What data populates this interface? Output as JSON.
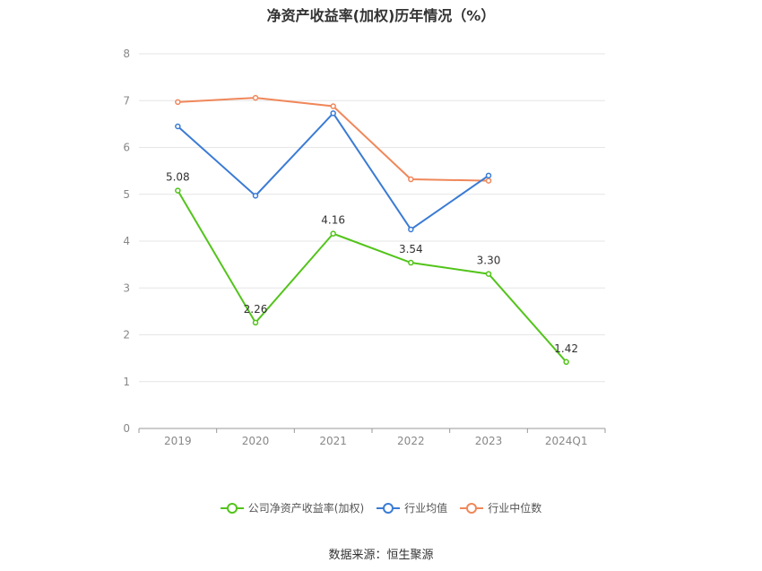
{
  "chart_data": {
    "type": "line",
    "title": "净资产收益率(加权)历年情况（%）",
    "categories": [
      "2019",
      "2020",
      "2021",
      "2022",
      "2023",
      "2024Q1"
    ],
    "y_ticks": [
      "0",
      "1",
      "2",
      "3",
      "4",
      "5",
      "6",
      "7",
      "8"
    ],
    "ylim": [
      0,
      8
    ],
    "grid": true,
    "legend_position": "bottom",
    "series": [
      {
        "name": "公司净资产收益率(加权)",
        "color": "#52c41a",
        "values": [
          5.08,
          2.26,
          4.16,
          3.54,
          3.3,
          1.42
        ],
        "labels": [
          "5.08",
          "2.26",
          "4.16",
          "3.54",
          "3.30",
          "1.42"
        ]
      },
      {
        "name": "行业均值",
        "color": "#3a7bd5",
        "values": [
          6.45,
          4.97,
          6.73,
          4.25,
          5.4,
          null
        ],
        "labels": null
      },
      {
        "name": "行业中位数",
        "color": "#f0875a",
        "values": [
          6.97,
          7.06,
          6.88,
          5.32,
          5.29,
          null
        ],
        "labels": null
      }
    ]
  },
  "source": "数据来源：恒生聚源"
}
